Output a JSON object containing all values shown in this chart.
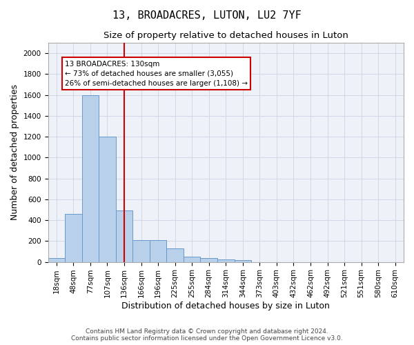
{
  "title": "13, BROADACRES, LUTON, LU2 7YF",
  "subtitle": "Size of property relative to detached houses in Luton",
  "xlabel": "Distribution of detached houses by size in Luton",
  "ylabel": "Number of detached properties",
  "footer_line1": "Contains HM Land Registry data © Crown copyright and database right 2024.",
  "footer_line2": "Contains public sector information licensed under the Open Government Licence v3.0.",
  "annotation_line1": "13 BROADACRES: 130sqm",
  "annotation_line2": "← 73% of detached houses are smaller (3,055)",
  "annotation_line3": "26% of semi-detached houses are larger (1,108) →",
  "vline_x_index": 4,
  "categories": [
    "18sqm",
    "48sqm",
    "77sqm",
    "107sqm",
    "136sqm",
    "166sqm",
    "196sqm",
    "225sqm",
    "255sqm",
    "284sqm",
    "314sqm",
    "344sqm",
    "373sqm",
    "403sqm",
    "432sqm",
    "462sqm",
    "492sqm",
    "521sqm",
    "551sqm",
    "580sqm",
    "610sqm"
  ],
  "values": [
    40,
    460,
    1600,
    1200,
    490,
    210,
    210,
    130,
    50,
    40,
    25,
    15,
    0,
    0,
    0,
    0,
    0,
    0,
    0,
    0,
    0
  ],
  "bar_color": "#b8d0ea",
  "bar_edgecolor": "#6699cc",
  "vline_color": "#cc0000",
  "annotation_box_edgecolor": "#cc0000",
  "annotation_box_facecolor": "white",
  "ylim": [
    0,
    2100
  ],
  "yticks": [
    0,
    200,
    400,
    600,
    800,
    1000,
    1200,
    1400,
    1600,
    1800,
    2000
  ],
  "grid_color": "#d0d8e8",
  "bg_color": "#eef2f8",
  "title_fontsize": 11,
  "subtitle_fontsize": 9.5,
  "xlabel_fontsize": 9,
  "ylabel_fontsize": 9,
  "tick_fontsize": 7.5,
  "annotation_fontsize": 7.5,
  "footer_fontsize": 6.5
}
